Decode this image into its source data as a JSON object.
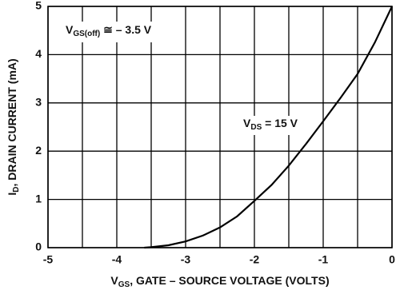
{
  "chart_data": {
    "type": "line",
    "x_label": [
      "V",
      "GS",
      ", GATE – SOURCE VOLTAGE (VOLTS)"
    ],
    "y_label": [
      "I",
      "D",
      ", DRAIN CURRENT (mA)"
    ],
    "annotations": [
      [
        "V",
        "GS(off)",
        " ≅ – 3.5 V"
      ],
      [
        "V",
        "DS",
        " = 15 V"
      ]
    ],
    "xlim": [
      -5,
      0
    ],
    "ylim": [
      0,
      5
    ],
    "xticks": [
      -5,
      -4,
      -3,
      -2,
      -1,
      0
    ],
    "x_minor_grid": [
      -4.5,
      -3.5,
      -2.5,
      -1.5,
      -0.5
    ],
    "yticks": [
      0,
      1,
      2,
      3,
      4,
      5
    ],
    "grid": true,
    "series": [
      {
        "color": "#000000",
        "x": [
          -3.6,
          -3.5,
          -3.25,
          -3,
          -2.75,
          -2.5,
          -2.25,
          -2,
          -1.75,
          -1.5,
          -1.25,
          -1,
          -0.75,
          -0.5,
          -0.25,
          0
        ],
        "values": [
          0,
          0.01,
          0.05,
          0.13,
          0.25,
          0.42,
          0.65,
          0.97,
          1.3,
          1.7,
          2.15,
          2.62,
          3.1,
          3.6,
          4.25,
          5
        ]
      }
    ]
  }
}
